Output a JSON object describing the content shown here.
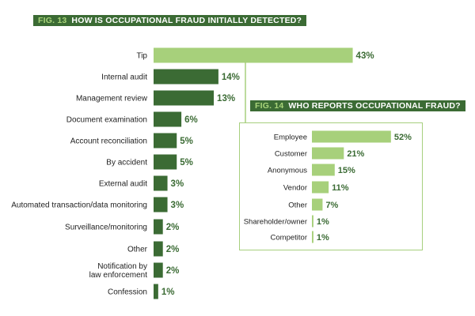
{
  "colors": {
    "title_bg": "#3b6b34",
    "title_num": "#a9d47a",
    "bar_dark": "#3b6b34",
    "bar_light": "#a7d07b",
    "value_text": "#3b6b34"
  },
  "chart_data": [
    {
      "type": "bar",
      "orientation": "horizontal",
      "fig_number": "FIG. 13",
      "title": "HOW IS OCCUPATIONAL FRAUD INITIALLY DETECTED?",
      "categories": [
        "Tip",
        "Internal audit",
        "Management review",
        "Document examination",
        "Account reconciliation",
        "By accident",
        "External audit",
        "Automated transaction/data monitoring",
        "Surveillance/monitoring",
        "Other",
        "Notification by law enforcement",
        "Confession"
      ],
      "values": [
        43,
        14,
        13,
        6,
        5,
        5,
        3,
        3,
        2,
        2,
        2,
        1
      ],
      "value_labels": [
        "43%",
        "14%",
        "13%",
        "6%",
        "5%",
        "5%",
        "3%",
        "3%",
        "2%",
        "2%",
        "2%",
        "1%"
      ],
      "highlight_color": "#a7d07b",
      "bar_color": "#3b6b34"
    },
    {
      "type": "bar",
      "orientation": "horizontal",
      "fig_number": "FIG. 14",
      "title": "WHO REPORTS OCCUPATIONAL FRAUD?",
      "categories": [
        "Employee",
        "Customer",
        "Anonymous",
        "Vendor",
        "Other",
        "Shareholder/owner",
        "Competitor"
      ],
      "values": [
        52,
        21,
        15,
        11,
        7,
        1,
        1
      ],
      "value_labels": [
        "52%",
        "21%",
        "15%",
        "11%",
        "7%",
        "1%",
        "1%"
      ],
      "bar_color": "#a7d07b"
    }
  ]
}
